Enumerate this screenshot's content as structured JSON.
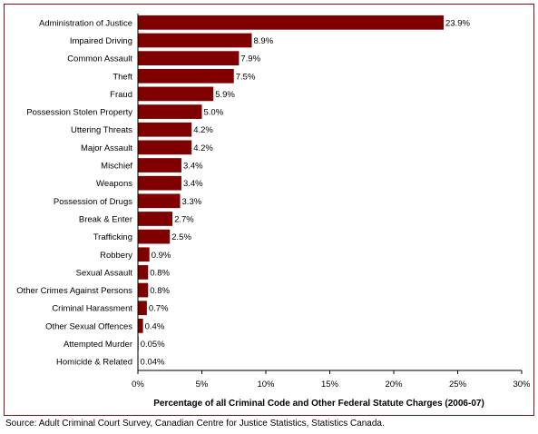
{
  "chart_data": {
    "type": "bar",
    "orientation": "horizontal",
    "categories": [
      "Administration of Justice",
      "Impaired Driving",
      "Common Assault",
      "Theft",
      "Fraud",
      "Possession Stolen Property",
      "Uttering Threats",
      "Major Assault",
      "Mischief",
      "Weapons",
      "Possession of Drugs",
      "Break & Enter",
      "Trafficking",
      "Robbery",
      "Sexual Assault",
      "Other Crimes Against Persons",
      "Criminal Harassment",
      "Other Sexual Offences",
      "Attempted Murder",
      "Homicide & Related"
    ],
    "values": [
      23.9,
      8.9,
      7.9,
      7.5,
      5.9,
      5.0,
      4.2,
      4.2,
      3.4,
      3.4,
      3.3,
      2.7,
      2.5,
      0.9,
      0.8,
      0.8,
      0.7,
      0.4,
      0.05,
      0.04
    ],
    "value_labels": [
      "23.9%",
      "8.9%",
      "7.9%",
      "7.5%",
      "5.9%",
      "5.0%",
      "4.2%",
      "4.2%",
      "3.4%",
      "3.4%",
      "3.3%",
      "2.7%",
      "2.5%",
      "0.9%",
      "0.8%",
      "0.8%",
      "0.7%",
      "0.4%",
      "0.05%",
      "0.04%"
    ],
    "xlim": [
      0,
      30
    ],
    "x_ticks": [
      0,
      5,
      10,
      15,
      20,
      25,
      30
    ],
    "x_tick_labels": [
      "0%",
      "5%",
      "10%",
      "15%",
      "20%",
      "25%",
      "30%"
    ],
    "xlabel": "Percentage of all Criminal Code and Other Federal Statute Charges (2006-07)",
    "ylabel": "",
    "title": "",
    "grid": false,
    "legend": false,
    "bar_color": "#800000"
  },
  "source_note": "Source:  Adult Criminal Court Survey, Canadian Centre for Justice Statistics, Statistics Canada."
}
